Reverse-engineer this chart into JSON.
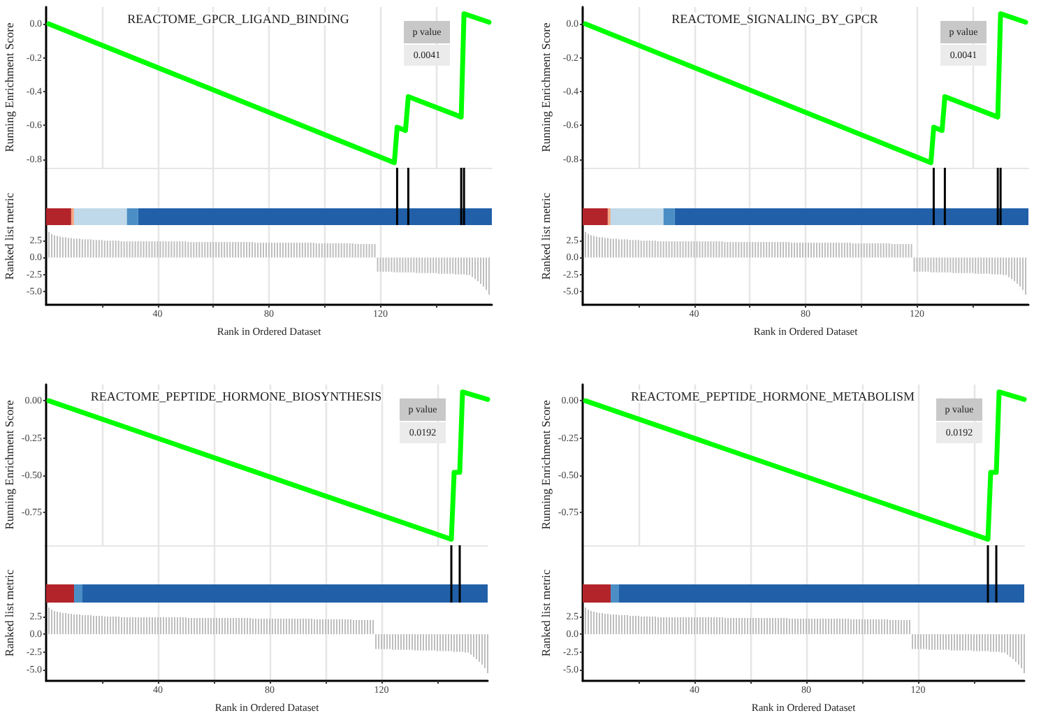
{
  "chart_data": [
    {
      "type": "line",
      "title": "REACTOME_GPCR_LIGAND_BINDING",
      "ylabel": "Running Enrichment Score",
      "annotations": [
        "p value",
        "0.0041"
      ],
      "x": [
        1,
        125,
        126,
        129,
        130,
        149,
        150,
        159
      ],
      "values": [
        0,
        -0.82,
        -0.61,
        -0.63,
        -0.43,
        -0.55,
        0.06,
        0.01
      ],
      "color": "#00ff00",
      "xlim": [
        0,
        160
      ],
      "xticks": [
        {
          "value": 20,
          "label": null
        },
        {
          "value": 40,
          "label": null
        },
        {
          "value": 60,
          "label": null
        },
        {
          "value": 80,
          "label": null
        },
        {
          "value": 100,
          "label": null
        },
        {
          "value": 120,
          "label": null
        },
        {
          "value": 140,
          "label": null
        }
      ],
      "ylim": [
        -0.85,
        0.1
      ],
      "yticks": [
        {
          "value": 0,
          "label": "0.0"
        },
        -0.2,
        -0.4,
        -0.6,
        -0.8
      ],
      "tick_labels": "y",
      "grid": "x"
    },
    {
      "type": "bar",
      "xlabel": "Rank in Ordered Dataset",
      "ylabel": "Ranked list metric",
      "color": "#bebebe",
      "xlim": [
        0,
        160
      ],
      "xticks": [
        {
          "value": 20,
          "label": null
        },
        40,
        {
          "value": 60,
          "label": null
        },
        80,
        {
          "value": 100,
          "label": null
        },
        120,
        {
          "value": 140,
          "label": null
        }
      ],
      "ylim": [
        -7,
        13.3
      ],
      "yticks": [
        2.5,
        {
          "value": 0,
          "label": "0.0"
        },
        -2.5,
        {
          "value": -5,
          "label": "-5.0"
        }
      ],
      "grid": "x",
      "ref_lines": [
        {
          "axis": "x",
          "value": 126
        },
        {
          "axis": "x",
          "value": 130
        },
        {
          "axis": "x",
          "value": 149
        },
        {
          "axis": "x",
          "value": 150
        }
      ],
      "bands": [
        {
          "axis": "x",
          "from": 0,
          "to": 9,
          "color": "#b2242a"
        },
        {
          "axis": "x",
          "from": 9,
          "to": 10,
          "color": "#f4a582"
        },
        {
          "axis": "x",
          "from": 10,
          "to": 29,
          "color": "#bfd9ea"
        },
        {
          "axis": "x",
          "from": 29,
          "to": 33,
          "color": "#4b8ec6"
        },
        {
          "axis": "x",
          "from": 33,
          "to": 160,
          "color": "#2160a8"
        }
      ],
      "x": [
        1,
        2,
        3,
        4,
        5,
        6,
        7,
        8,
        9,
        10,
        11,
        12,
        13,
        14,
        15,
        16,
        17,
        18,
        19,
        20,
        21,
        22,
        23,
        24,
        25,
        26,
        27,
        28,
        29,
        30,
        31,
        32,
        33,
        34,
        35,
        36,
        37,
        38,
        39,
        40,
        41,
        42,
        43,
        44,
        45,
        46,
        47,
        48,
        49,
        50,
        51,
        52,
        53,
        54,
        55,
        56,
        57,
        58,
        59,
        60,
        61,
        62,
        63,
        64,
        65,
        66,
        67,
        68,
        69,
        70,
        71,
        72,
        73,
        74,
        75,
        76,
        77,
        78,
        79,
        80,
        81,
        82,
        83,
        84,
        85,
        86,
        87,
        88,
        89,
        90,
        91,
        92,
        93,
        94,
        95,
        96,
        97,
        98,
        99,
        100,
        101,
        102,
        103,
        104,
        105,
        106,
        107,
        108,
        109,
        110,
        111,
        112,
        113,
        114,
        115,
        116,
        117,
        118,
        119,
        120,
        121,
        122,
        123,
        124,
        125,
        126,
        127,
        128,
        129,
        130,
        131,
        132,
        133,
        134,
        135,
        136,
        137,
        138,
        139,
        140,
        141,
        142,
        143,
        144,
        145,
        146,
        147,
        148,
        149,
        150,
        151,
        152,
        153,
        154,
        155,
        156,
        157,
        158,
        159
      ],
      "values": [
        3.8,
        3.5,
        3.3,
        3.2,
        3.1,
        3.0,
        3.0,
        2.9,
        2.9,
        2.8,
        2.8,
        2.8,
        2.7,
        2.7,
        2.7,
        2.7,
        2.6,
        2.6,
        2.6,
        2.6,
        2.5,
        2.5,
        2.5,
        2.5,
        2.5,
        2.5,
        2.4,
        2.4,
        2.4,
        2.4,
        2.4,
        2.4,
        2.4,
        2.4,
        2.4,
        2.4,
        2.4,
        2.4,
        2.4,
        2.4,
        2.4,
        2.4,
        2.4,
        2.4,
        2.4,
        2.4,
        2.4,
        2.4,
        2.4,
        2.4,
        2.3,
        2.3,
        2.3,
        2.3,
        2.3,
        2.3,
        2.3,
        2.3,
        2.3,
        2.3,
        2.3,
        2.3,
        2.3,
        2.3,
        2.3,
        2.3,
        2.3,
        2.3,
        2.3,
        2.3,
        2.3,
        2.3,
        2.3,
        2.3,
        2.2,
        2.2,
        2.2,
        2.2,
        2.2,
        2.2,
        2.2,
        2.2,
        2.2,
        2.2,
        2.2,
        2.2,
        2.2,
        2.2,
        2.2,
        2.2,
        2.2,
        2.2,
        2.2,
        2.2,
        2.2,
        2.2,
        2.1,
        2.1,
        2.1,
        2.1,
        2.1,
        2.1,
        2.1,
        2.1,
        2.1,
        2.1,
        2.1,
        2.1,
        2.1,
        2.1,
        2.0,
        2.0,
        2.0,
        2.0,
        2.0,
        2.0,
        2.0,
        2.0,
        -2.1,
        -2.1,
        -2.1,
        -2.1,
        -2.1,
        -2.1,
        -2.2,
        -2.2,
        -2.2,
        -2.2,
        -2.2,
        -2.2,
        -2.2,
        -2.2,
        -2.3,
        -2.3,
        -2.3,
        -2.3,
        -2.3,
        -2.3,
        -2.3,
        -2.3,
        -2.4,
        -2.4,
        -2.4,
        -2.4,
        -2.4,
        -2.4,
        -2.5,
        -2.5,
        -2.5,
        -2.5,
        -2.6,
        -2.6,
        -2.9,
        -3.2,
        -3.5,
        -3.9,
        -4.3,
        -4.8,
        -5.5
      ]
    },
    {
      "type": "line",
      "title": "REACTOME_SIGNALING_BY_GPCR",
      "ylabel": "Running Enrichment Score",
      "annotations": [
        "p value",
        "0.0041"
      ],
      "x": [
        1,
        125,
        126,
        129,
        130,
        149,
        150,
        159
      ],
      "values": [
        0,
        -0.82,
        -0.61,
        -0.63,
        -0.43,
        -0.55,
        0.06,
        0.01
      ],
      "color": "#00ff00",
      "xlim": [
        0,
        160
      ],
      "xticks": [
        {
          "value": 20,
          "label": null
        },
        {
          "value": 40,
          "label": null
        },
        {
          "value": 60,
          "label": null
        },
        {
          "value": 80,
          "label": null
        },
        {
          "value": 100,
          "label": null
        },
        {
          "value": 120,
          "label": null
        },
        {
          "value": 140,
          "label": null
        }
      ],
      "ylim": [
        -0.85,
        0.1
      ],
      "yticks": [
        {
          "value": 0,
          "label": "0.0"
        },
        -0.2,
        -0.4,
        -0.6,
        -0.8
      ],
      "tick_labels": "y",
      "grid": "x"
    },
    {
      "type": "bar",
      "xlabel": "Rank in Ordered Dataset",
      "ylabel": "Ranked list metric",
      "color": "#bebebe",
      "xlim": [
        0,
        160
      ],
      "xticks": [
        {
          "value": 20,
          "label": null
        },
        40,
        {
          "value": 60,
          "label": null
        },
        80,
        {
          "value": 100,
          "label": null
        },
        120,
        {
          "value": 140,
          "label": null
        }
      ],
      "ylim": [
        -7,
        13.3
      ],
      "yticks": [
        2.5,
        {
          "value": 0,
          "label": "0.0"
        },
        -2.5,
        {
          "value": -5,
          "label": "-5.0"
        }
      ],
      "grid": "x",
      "ref_lines": [
        {
          "axis": "x",
          "value": 126
        },
        {
          "axis": "x",
          "value": 130
        },
        {
          "axis": "x",
          "value": 149
        },
        {
          "axis": "x",
          "value": 150
        }
      ],
      "bands": [
        {
          "axis": "x",
          "from": 0,
          "to": 9,
          "color": "#b2242a"
        },
        {
          "axis": "x",
          "from": 9,
          "to": 10,
          "color": "#f4a582"
        },
        {
          "axis": "x",
          "from": 10,
          "to": 29,
          "color": "#bfd9ea"
        },
        {
          "axis": "x",
          "from": 29,
          "to": 33,
          "color": "#4b8ec6"
        },
        {
          "axis": "x",
          "from": 33,
          "to": 160,
          "color": "#2160a8"
        }
      ],
      "x": [
        1,
        2,
        3,
        4,
        5,
        6,
        7,
        8,
        9,
        10,
        11,
        12,
        13,
        14,
        15,
        16,
        17,
        18,
        19,
        20,
        21,
        22,
        23,
        24,
        25,
        26,
        27,
        28,
        29,
        30,
        31,
        32,
        33,
        34,
        35,
        36,
        37,
        38,
        39,
        40,
        41,
        42,
        43,
        44,
        45,
        46,
        47,
        48,
        49,
        50,
        51,
        52,
        53,
        54,
        55,
        56,
        57,
        58,
        59,
        60,
        61,
        62,
        63,
        64,
        65,
        66,
        67,
        68,
        69,
        70,
        71,
        72,
        73,
        74,
        75,
        76,
        77,
        78,
        79,
        80,
        81,
        82,
        83,
        84,
        85,
        86,
        87,
        88,
        89,
        90,
        91,
        92,
        93,
        94,
        95,
        96,
        97,
        98,
        99,
        100,
        101,
        102,
        103,
        104,
        105,
        106,
        107,
        108,
        109,
        110,
        111,
        112,
        113,
        114,
        115,
        116,
        117,
        118,
        119,
        120,
        121,
        122,
        123,
        124,
        125,
        126,
        127,
        128,
        129,
        130,
        131,
        132,
        133,
        134,
        135,
        136,
        137,
        138,
        139,
        140,
        141,
        142,
        143,
        144,
        145,
        146,
        147,
        148,
        149,
        150,
        151,
        152,
        153,
        154,
        155,
        156,
        157,
        158,
        159
      ],
      "values": [
        3.8,
        3.5,
        3.3,
        3.2,
        3.1,
        3.0,
        3.0,
        2.9,
        2.9,
        2.8,
        2.8,
        2.8,
        2.7,
        2.7,
        2.7,
        2.7,
        2.6,
        2.6,
        2.6,
        2.6,
        2.5,
        2.5,
        2.5,
        2.5,
        2.5,
        2.5,
        2.4,
        2.4,
        2.4,
        2.4,
        2.4,
        2.4,
        2.4,
        2.4,
        2.4,
        2.4,
        2.4,
        2.4,
        2.4,
        2.4,
        2.4,
        2.4,
        2.4,
        2.4,
        2.4,
        2.4,
        2.4,
        2.4,
        2.4,
        2.4,
        2.3,
        2.3,
        2.3,
        2.3,
        2.3,
        2.3,
        2.3,
        2.3,
        2.3,
        2.3,
        2.3,
        2.3,
        2.3,
        2.3,
        2.3,
        2.3,
        2.3,
        2.3,
        2.3,
        2.3,
        2.3,
        2.3,
        2.3,
        2.3,
        2.2,
        2.2,
        2.2,
        2.2,
        2.2,
        2.2,
        2.2,
        2.2,
        2.2,
        2.2,
        2.2,
        2.2,
        2.2,
        2.2,
        2.2,
        2.2,
        2.2,
        2.2,
        2.2,
        2.2,
        2.2,
        2.2,
        2.1,
        2.1,
        2.1,
        2.1,
        2.1,
        2.1,
        2.1,
        2.1,
        2.1,
        2.1,
        2.1,
        2.1,
        2.1,
        2.1,
        2.0,
        2.0,
        2.0,
        2.0,
        2.0,
        2.0,
        2.0,
        2.0,
        -2.1,
        -2.1,
        -2.1,
        -2.1,
        -2.1,
        -2.1,
        -2.2,
        -2.2,
        -2.2,
        -2.2,
        -2.2,
        -2.2,
        -2.2,
        -2.2,
        -2.3,
        -2.3,
        -2.3,
        -2.3,
        -2.3,
        -2.3,
        -2.3,
        -2.3,
        -2.4,
        -2.4,
        -2.4,
        -2.4,
        -2.4,
        -2.4,
        -2.5,
        -2.5,
        -2.5,
        -2.5,
        -2.6,
        -2.6,
        -2.9,
        -3.2,
        -3.5,
        -3.9,
        -4.3,
        -4.8,
        -5.5
      ]
    },
    {
      "type": "line",
      "title": "REACTOME_PEPTIDE_HORMONE_BIOSYNTHESIS",
      "ylabel": "Running Enrichment Score",
      "annotations": [
        "p value",
        "0.0192"
      ],
      "x": [
        1,
        145,
        146,
        148,
        149,
        158
      ],
      "values": [
        0,
        -0.93,
        -0.48,
        -0.48,
        0.06,
        0.01
      ],
      "color": "#00ff00",
      "xlim": [
        0,
        158
      ],
      "xticks": [
        {
          "value": 20,
          "label": null
        },
        {
          "value": 40,
          "label": null
        },
        {
          "value": 60,
          "label": null
        },
        {
          "value": 80,
          "label": null
        },
        {
          "value": 100,
          "label": null
        },
        {
          "value": 120,
          "label": null
        },
        {
          "value": 140,
          "label": null
        }
      ],
      "ylim": [
        -0.97,
        0.11
      ],
      "yticks": [
        {
          "value": 0,
          "label": "0.00"
        },
        -0.25,
        {
          "value": -0.5,
          "label": "-0.50"
        },
        -0.75
      ],
      "tick_labels": "y",
      "grid": "x"
    },
    {
      "type": "bar",
      "xlabel": "Rank in Ordered Dataset",
      "ylabel": "Ranked list metric",
      "color": "#bebebe",
      "xlim": [
        0,
        158
      ],
      "xticks": [
        {
          "value": 20,
          "label": null
        },
        40,
        {
          "value": 60,
          "label": null
        },
        80,
        {
          "value": 100,
          "label": null
        },
        120,
        {
          "value": 140,
          "label": null
        }
      ],
      "ylim": [
        -6.6,
        12.6
      ],
      "yticks": [
        2.5,
        {
          "value": 0,
          "label": "0.0"
        },
        -2.5,
        {
          "value": -5,
          "label": "-5.0"
        }
      ],
      "grid": "x",
      "ref_lines": [
        {
          "axis": "x",
          "value": 145
        },
        {
          "axis": "x",
          "value": 148
        }
      ],
      "bands": [
        {
          "axis": "x",
          "from": 0,
          "to": 10,
          "color": "#b2242a"
        },
        {
          "axis": "x",
          "from": 10,
          "to": 13,
          "color": "#4b8ec6"
        },
        {
          "axis": "x",
          "from": 13,
          "to": 158,
          "color": "#2160a8"
        }
      ],
      "x": [
        1,
        2,
        3,
        4,
        5,
        6,
        7,
        8,
        9,
        10,
        11,
        12,
        13,
        14,
        15,
        16,
        17,
        18,
        19,
        20,
        21,
        22,
        23,
        24,
        25,
        26,
        27,
        28,
        29,
        30,
        31,
        32,
        33,
        34,
        35,
        36,
        37,
        38,
        39,
        40,
        41,
        42,
        43,
        44,
        45,
        46,
        47,
        48,
        49,
        50,
        51,
        52,
        53,
        54,
        55,
        56,
        57,
        58,
        59,
        60,
        61,
        62,
        63,
        64,
        65,
        66,
        67,
        68,
        69,
        70,
        71,
        72,
        73,
        74,
        75,
        76,
        77,
        78,
        79,
        80,
        81,
        82,
        83,
        84,
        85,
        86,
        87,
        88,
        89,
        90,
        91,
        92,
        93,
        94,
        95,
        96,
        97,
        98,
        99,
        100,
        101,
        102,
        103,
        104,
        105,
        106,
        107,
        108,
        109,
        110,
        111,
        112,
        113,
        114,
        115,
        116,
        117,
        118,
        119,
        120,
        121,
        122,
        123,
        124,
        125,
        126,
        127,
        128,
        129,
        130,
        131,
        132,
        133,
        134,
        135,
        136,
        137,
        138,
        139,
        140,
        141,
        142,
        143,
        144,
        145,
        146,
        147,
        148,
        149,
        150,
        151,
        152,
        153,
        154,
        155,
        156,
        157,
        158
      ],
      "values": [
        3.8,
        3.5,
        3.3,
        3.2,
        3.1,
        3.0,
        3.0,
        2.9,
        2.9,
        2.8,
        2.8,
        2.8,
        2.7,
        2.7,
        2.7,
        2.7,
        2.6,
        2.6,
        2.6,
        2.6,
        2.5,
        2.5,
        2.5,
        2.5,
        2.5,
        2.5,
        2.4,
        2.4,
        2.4,
        2.4,
        2.4,
        2.4,
        2.4,
        2.4,
        2.4,
        2.4,
        2.4,
        2.4,
        2.4,
        2.4,
        2.4,
        2.4,
        2.4,
        2.4,
        2.4,
        2.4,
        2.4,
        2.4,
        2.4,
        2.4,
        2.3,
        2.3,
        2.3,
        2.3,
        2.3,
        2.3,
        2.3,
        2.3,
        2.3,
        2.3,
        2.3,
        2.3,
        2.3,
        2.3,
        2.3,
        2.3,
        2.3,
        2.3,
        2.3,
        2.3,
        2.3,
        2.3,
        2.3,
        2.2,
        2.2,
        2.2,
        2.2,
        2.2,
        2.2,
        2.2,
        2.2,
        2.2,
        2.2,
        2.2,
        2.2,
        2.2,
        2.2,
        2.2,
        2.2,
        2.2,
        2.2,
        2.2,
        2.2,
        2.2,
        2.2,
        2.1,
        2.1,
        2.1,
        2.1,
        2.1,
        2.1,
        2.1,
        2.1,
        2.1,
        2.1,
        2.1,
        2.1,
        2.1,
        2.1,
        2.0,
        2.0,
        2.0,
        2.0,
        2.0,
        2.0,
        2.0,
        2.0,
        -2.1,
        -2.1,
        -2.1,
        -2.1,
        -2.1,
        -2.1,
        -2.2,
        -2.2,
        -2.2,
        -2.2,
        -2.2,
        -2.2,
        -2.2,
        -2.2,
        -2.3,
        -2.3,
        -2.3,
        -2.3,
        -2.3,
        -2.3,
        -2.3,
        -2.3,
        -2.4,
        -2.4,
        -2.4,
        -2.4,
        -2.4,
        -2.4,
        -2.5,
        -2.5,
        -2.5,
        -2.5,
        -2.6,
        -2.6,
        -2.9,
        -3.2,
        -3.5,
        -3.9,
        -4.3,
        -4.8,
        -5.5
      ]
    },
    {
      "type": "line",
      "title": "REACTOME_PEPTIDE_HORMONE_METABOLISM",
      "ylabel": "Running Enrichment Score",
      "annotations": [
        "p value",
        "0.0192"
      ],
      "x": [
        1,
        145,
        146,
        148,
        149,
        158
      ],
      "values": [
        0,
        -0.93,
        -0.48,
        -0.48,
        0.06,
        0.01
      ],
      "color": "#00ff00",
      "xlim": [
        0,
        158
      ],
      "xticks": [
        {
          "value": 20,
          "label": null
        },
        {
          "value": 40,
          "label": null
        },
        {
          "value": 60,
          "label": null
        },
        {
          "value": 80,
          "label": null
        },
        {
          "value": 100,
          "label": null
        },
        {
          "value": 120,
          "label": null
        },
        {
          "value": 140,
          "label": null
        }
      ],
      "ylim": [
        -0.97,
        0.11
      ],
      "yticks": [
        {
          "value": 0,
          "label": "0.00"
        },
        -0.25,
        {
          "value": -0.5,
          "label": "-0.50"
        },
        -0.75
      ],
      "tick_labels": "y",
      "grid": "x"
    },
    {
      "type": "bar",
      "xlabel": "Rank in Ordered Dataset",
      "ylabel": "Ranked list metric",
      "color": "#bebebe",
      "xlim": [
        0,
        158
      ],
      "xticks": [
        {
          "value": 20,
          "label": null
        },
        40,
        {
          "value": 60,
          "label": null
        },
        80,
        {
          "value": 100,
          "label": null
        },
        120,
        {
          "value": 140,
          "label": null
        }
      ],
      "ylim": [
        -6.6,
        12.6
      ],
      "yticks": [
        2.5,
        {
          "value": 0,
          "label": "0.0"
        },
        -2.5,
        {
          "value": -5,
          "label": "-5.0"
        }
      ],
      "grid": "x",
      "ref_lines": [
        {
          "axis": "x",
          "value": 145
        },
        {
          "axis": "x",
          "value": 148
        }
      ],
      "bands": [
        {
          "axis": "x",
          "from": 0,
          "to": 10,
          "color": "#b2242a"
        },
        {
          "axis": "x",
          "from": 10,
          "to": 13,
          "color": "#4b8ec6"
        },
        {
          "axis": "x",
          "from": 13,
          "to": 158,
          "color": "#2160a8"
        }
      ],
      "x": [
        1,
        2,
        3,
        4,
        5,
        6,
        7,
        8,
        9,
        10,
        11,
        12,
        13,
        14,
        15,
        16,
        17,
        18,
        19,
        20,
        21,
        22,
        23,
        24,
        25,
        26,
        27,
        28,
        29,
        30,
        31,
        32,
        33,
        34,
        35,
        36,
        37,
        38,
        39,
        40,
        41,
        42,
        43,
        44,
        45,
        46,
        47,
        48,
        49,
        50,
        51,
        52,
        53,
        54,
        55,
        56,
        57,
        58,
        59,
        60,
        61,
        62,
        63,
        64,
        65,
        66,
        67,
        68,
        69,
        70,
        71,
        72,
        73,
        74,
        75,
        76,
        77,
        78,
        79,
        80,
        81,
        82,
        83,
        84,
        85,
        86,
        87,
        88,
        89,
        90,
        91,
        92,
        93,
        94,
        95,
        96,
        97,
        98,
        99,
        100,
        101,
        102,
        103,
        104,
        105,
        106,
        107,
        108,
        109,
        110,
        111,
        112,
        113,
        114,
        115,
        116,
        117,
        118,
        119,
        120,
        121,
        122,
        123,
        124,
        125,
        126,
        127,
        128,
        129,
        130,
        131,
        132,
        133,
        134,
        135,
        136,
        137,
        138,
        139,
        140,
        141,
        142,
        143,
        144,
        145,
        146,
        147,
        148,
        149,
        150,
        151,
        152,
        153,
        154,
        155,
        156,
        157,
        158
      ],
      "values": [
        3.8,
        3.5,
        3.3,
        3.2,
        3.1,
        3.0,
        3.0,
        2.9,
        2.9,
        2.8,
        2.8,
        2.8,
        2.7,
        2.7,
        2.7,
        2.7,
        2.6,
        2.6,
        2.6,
        2.6,
        2.5,
        2.5,
        2.5,
        2.5,
        2.5,
        2.5,
        2.4,
        2.4,
        2.4,
        2.4,
        2.4,
        2.4,
        2.4,
        2.4,
        2.4,
        2.4,
        2.4,
        2.4,
        2.4,
        2.4,
        2.4,
        2.4,
        2.4,
        2.4,
        2.4,
        2.4,
        2.4,
        2.4,
        2.4,
        2.4,
        2.3,
        2.3,
        2.3,
        2.3,
        2.3,
        2.3,
        2.3,
        2.3,
        2.3,
        2.3,
        2.3,
        2.3,
        2.3,
        2.3,
        2.3,
        2.3,
        2.3,
        2.3,
        2.3,
        2.3,
        2.3,
        2.3,
        2.3,
        2.2,
        2.2,
        2.2,
        2.2,
        2.2,
        2.2,
        2.2,
        2.2,
        2.2,
        2.2,
        2.2,
        2.2,
        2.2,
        2.2,
        2.2,
        2.2,
        2.2,
        2.2,
        2.2,
        2.2,
        2.2,
        2.2,
        2.1,
        2.1,
        2.1,
        2.1,
        2.1,
        2.1,
        2.1,
        2.1,
        2.1,
        2.1,
        2.1,
        2.1,
        2.1,
        2.1,
        2.0,
        2.0,
        2.0,
        2.0,
        2.0,
        2.0,
        2.0,
        2.0,
        -2.1,
        -2.1,
        -2.1,
        -2.1,
        -2.1,
        -2.1,
        -2.2,
        -2.2,
        -2.2,
        -2.2,
        -2.2,
        -2.2,
        -2.2,
        -2.2,
        -2.3,
        -2.3,
        -2.3,
        -2.3,
        -2.3,
        -2.3,
        -2.3,
        -2.3,
        -2.4,
        -2.4,
        -2.4,
        -2.4,
        -2.4,
        -2.4,
        -2.5,
        -2.5,
        -2.5,
        -2.5,
        -2.6,
        -2.6,
        -2.9,
        -3.2,
        -3.5,
        -3.9,
        -4.3,
        -4.8,
        -5.5
      ]
    }
  ]
}
